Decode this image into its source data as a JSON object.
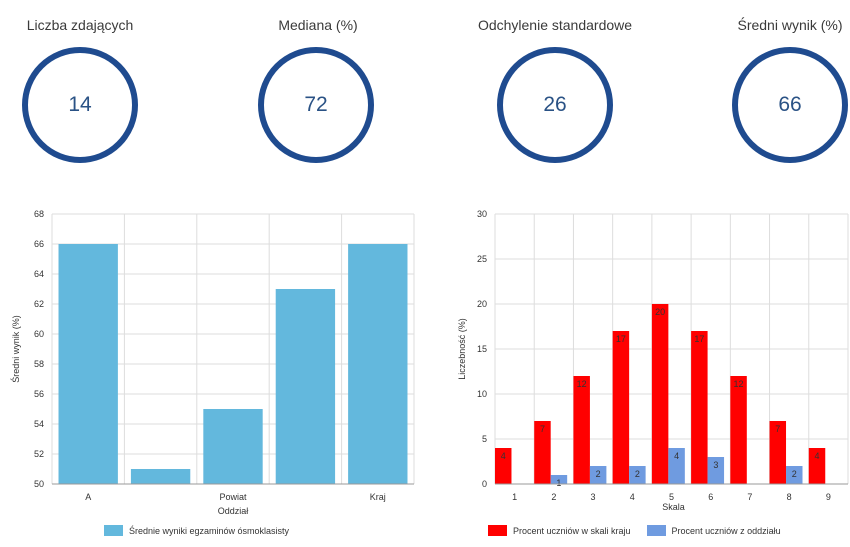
{
  "stats": [
    {
      "label": "Liczba zdających",
      "value": "14"
    },
    {
      "label": "Mediana (%)",
      "value": "72"
    },
    {
      "label": "Odchylenie standardowe",
      "value": "26"
    },
    {
      "label": "Średni wynik (%)",
      "value": "66"
    }
  ],
  "colors": {
    "ring": "#1f4b8f",
    "bar_left": "#63b8dd",
    "red": "#ff0000",
    "blue": "#6f9be0"
  },
  "chart_data": [
    {
      "type": "bar",
      "categories": [
        "A",
        "",
        "Powiat",
        "",
        "Kraj"
      ],
      "values": [
        66,
        51,
        55,
        63,
        66
      ],
      "ylim": [
        50,
        68
      ],
      "yticks": [
        "50",
        "52",
        "54",
        "56",
        "58",
        "60",
        "62",
        "64",
        "66",
        "68"
      ],
      "xlabel": "Oddział",
      "ylabel": "Średni wynik (%)",
      "grid": true,
      "legend": [
        "Średnie wyniki egzaminów ósmoklasisty"
      ],
      "legend_position": "bottom"
    },
    {
      "type": "bar",
      "categories": [
        "1",
        "2",
        "3",
        "4",
        "5",
        "6",
        "7",
        "8",
        "9"
      ],
      "series": [
        {
          "name": "Procent uczniów w skali kraju",
          "values": [
            4,
            7,
            12,
            17,
            20,
            17,
            12,
            7,
            4
          ],
          "labels": [
            "4",
            "7",
            "12",
            "17",
            "20",
            "17",
            "12",
            "7",
            "4"
          ]
        },
        {
          "name": "Procent uczniów z oddziału",
          "values": [
            0,
            1,
            2,
            2,
            4,
            3,
            0,
            2,
            0
          ],
          "labels": [
            "",
            "1",
            "2",
            "2",
            "4",
            "3",
            "",
            "2",
            ""
          ]
        }
      ],
      "ylim": [
        0,
        30
      ],
      "yticks": [
        "0",
        "5",
        "10",
        "15",
        "20",
        "25",
        "30"
      ],
      "xlabel": "Skala",
      "ylabel": "Liczebność (%)",
      "grid": true,
      "legend_position": "bottom"
    }
  ]
}
